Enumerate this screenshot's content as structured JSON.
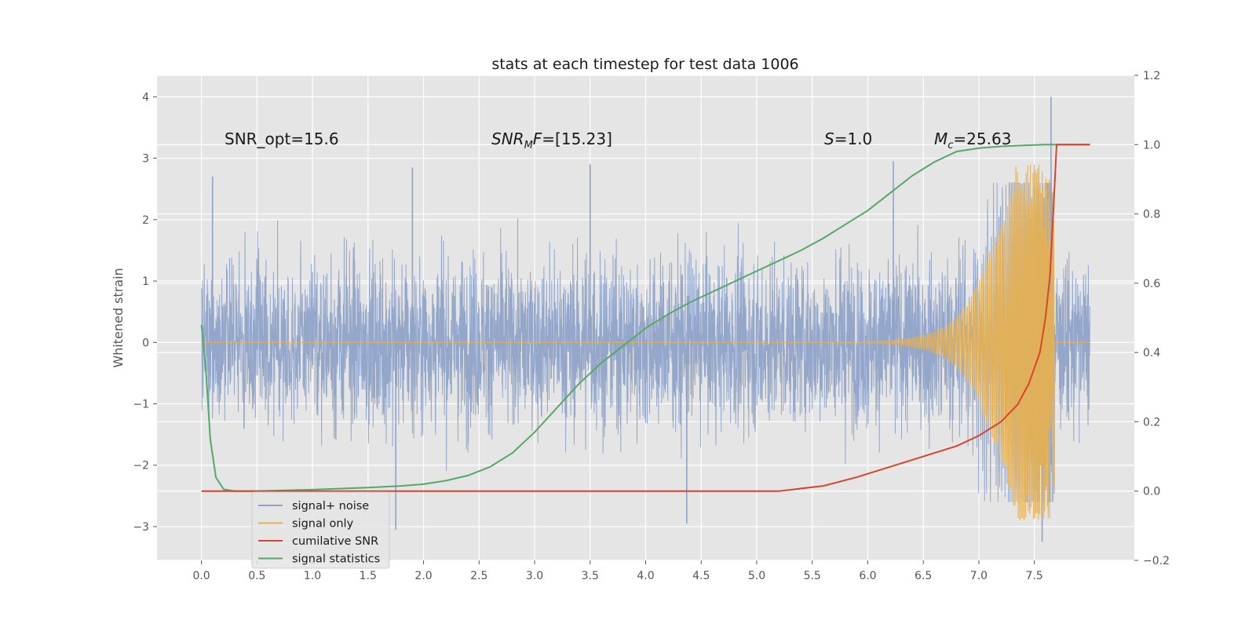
{
  "chart_data": {
    "type": "line",
    "title": "stats at each timestep for test data 1006",
    "xlabel": "",
    "ylabel": "Whitened strain",
    "y2label": "",
    "xlim": [
      -0.4,
      8.4
    ],
    "ylim": [
      -3.55,
      4.35
    ],
    "y2lim": [
      -0.2,
      1.2
    ],
    "x_ticks": [
      "0.0",
      "0.5",
      "1.0",
      "1.5",
      "2.0",
      "2.5",
      "3.0",
      "3.5",
      "4.0",
      "4.5",
      "5.0",
      "5.5",
      "6.0",
      "6.5",
      "7.0",
      "7.5"
    ],
    "y_ticks": [
      "−3",
      "−2",
      "−1",
      "0",
      "1",
      "2",
      "3",
      "4"
    ],
    "y2_ticks": [
      "−0.2",
      "0.0",
      "0.2",
      "0.4",
      "0.6",
      "0.8",
      "1.0",
      "1.2"
    ],
    "grid": true,
    "legend_position": "lower-left",
    "annotations": {
      "snr_opt": "SNR_opt=15.6",
      "snr_mf_main": "SNR",
      "snr_mf_sub": "M",
      "snr_mf_tail": "F=[15.23]",
      "s_main": "S",
      "s_tail": "=1.0",
      "mc_main": "M",
      "mc_sub": "c",
      "mc_tail": "=25.63"
    },
    "series": [
      {
        "name": "signal+ noise",
        "axis": "left",
        "color": "#8fa3c8",
        "x_range": [
          0.0,
          8.0
        ],
        "typical_range": [
          -1.6,
          1.6
        ],
        "peaks": [
          [
            7.65,
            4.0
          ],
          [
            7.57,
            -3.25
          ],
          [
            1.75,
            -3.05
          ],
          [
            4.37,
            -2.95
          ],
          [
            0.1,
            2.7
          ],
          [
            1.9,
            2.85
          ],
          [
            6.23,
            2.95
          ],
          [
            3.5,
            2.9
          ]
        ]
      },
      {
        "name": "signal only",
        "axis": "left",
        "color": "#e8b04e",
        "x_range": [
          0.0,
          8.0
        ],
        "merger_time": 7.68,
        "peak_amplitude": 2.9
      },
      {
        "name": "cumilative SNR",
        "axis": "right",
        "color": "#d9452b",
        "x": [
          0.0,
          5.2,
          5.6,
          5.9,
          6.2,
          6.5,
          6.8,
          7.0,
          7.2,
          7.35,
          7.45,
          7.55,
          7.6,
          7.64,
          7.67,
          7.7,
          8.0
        ],
        "y": [
          0.0,
          0.0,
          0.015,
          0.04,
          0.07,
          0.1,
          0.13,
          0.16,
          0.2,
          0.25,
          0.31,
          0.4,
          0.5,
          0.62,
          0.8,
          1.0,
          1.0
        ]
      },
      {
        "name": "signal statistics",
        "axis": "right",
        "color": "#55a868",
        "x": [
          0.0,
          0.04,
          0.08,
          0.13,
          0.2,
          0.3,
          0.5,
          1.0,
          1.5,
          1.8,
          2.0,
          2.2,
          2.4,
          2.6,
          2.8,
          3.0,
          3.2,
          3.4,
          3.6,
          3.8,
          4.0,
          4.2,
          4.4,
          4.6,
          4.8,
          5.0,
          5.2,
          5.4,
          5.6,
          5.8,
          6.0,
          6.2,
          6.4,
          6.6,
          6.8,
          7.0,
          7.2,
          7.4,
          7.6,
          7.7,
          8.0
        ],
        "y": [
          0.48,
          0.35,
          0.15,
          0.04,
          0.005,
          0.0,
          0.0,
          0.004,
          0.01,
          0.015,
          0.02,
          0.03,
          0.045,
          0.07,
          0.11,
          0.17,
          0.24,
          0.31,
          0.37,
          0.42,
          0.47,
          0.51,
          0.545,
          0.575,
          0.605,
          0.635,
          0.665,
          0.695,
          0.73,
          0.77,
          0.81,
          0.86,
          0.91,
          0.95,
          0.98,
          0.99,
          0.995,
          0.998,
          1.0,
          1.0,
          1.0
        ]
      }
    ]
  }
}
